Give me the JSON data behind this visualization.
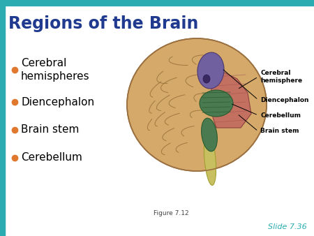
{
  "title": "Regions of the Brain",
  "title_color": "#1F3A8F",
  "title_fontsize": 17,
  "background_color": "#FFFFFF",
  "top_bar_color": "#2AACB0",
  "left_bar_color": "#2AACB0",
  "bullet_items": [
    "Cerebral\nhemispheres",
    "Diencephalon",
    "Brain stem",
    "Cerebellum"
  ],
  "bullet_color": "#E07830",
  "bullet_text_color": "#000000",
  "bullet_fontsize": 11,
  "figure_caption": "Figure 7.12",
  "figure_caption_fontsize": 6.5,
  "slide_label": "Slide 7.36",
  "slide_label_fontsize": 8,
  "slide_label_color": "#2AACB0",
  "annotation_fontsize": 6.5,
  "cerebral_color": "#D4A96A",
  "cerebral_edge": "#9B7040",
  "diencephalon_color": "#7060A0",
  "cerebellum_color": "#4A7A50",
  "brainstem_color": "#C47060",
  "cord_color": "#C8C870",
  "fold_color": "#A07840"
}
